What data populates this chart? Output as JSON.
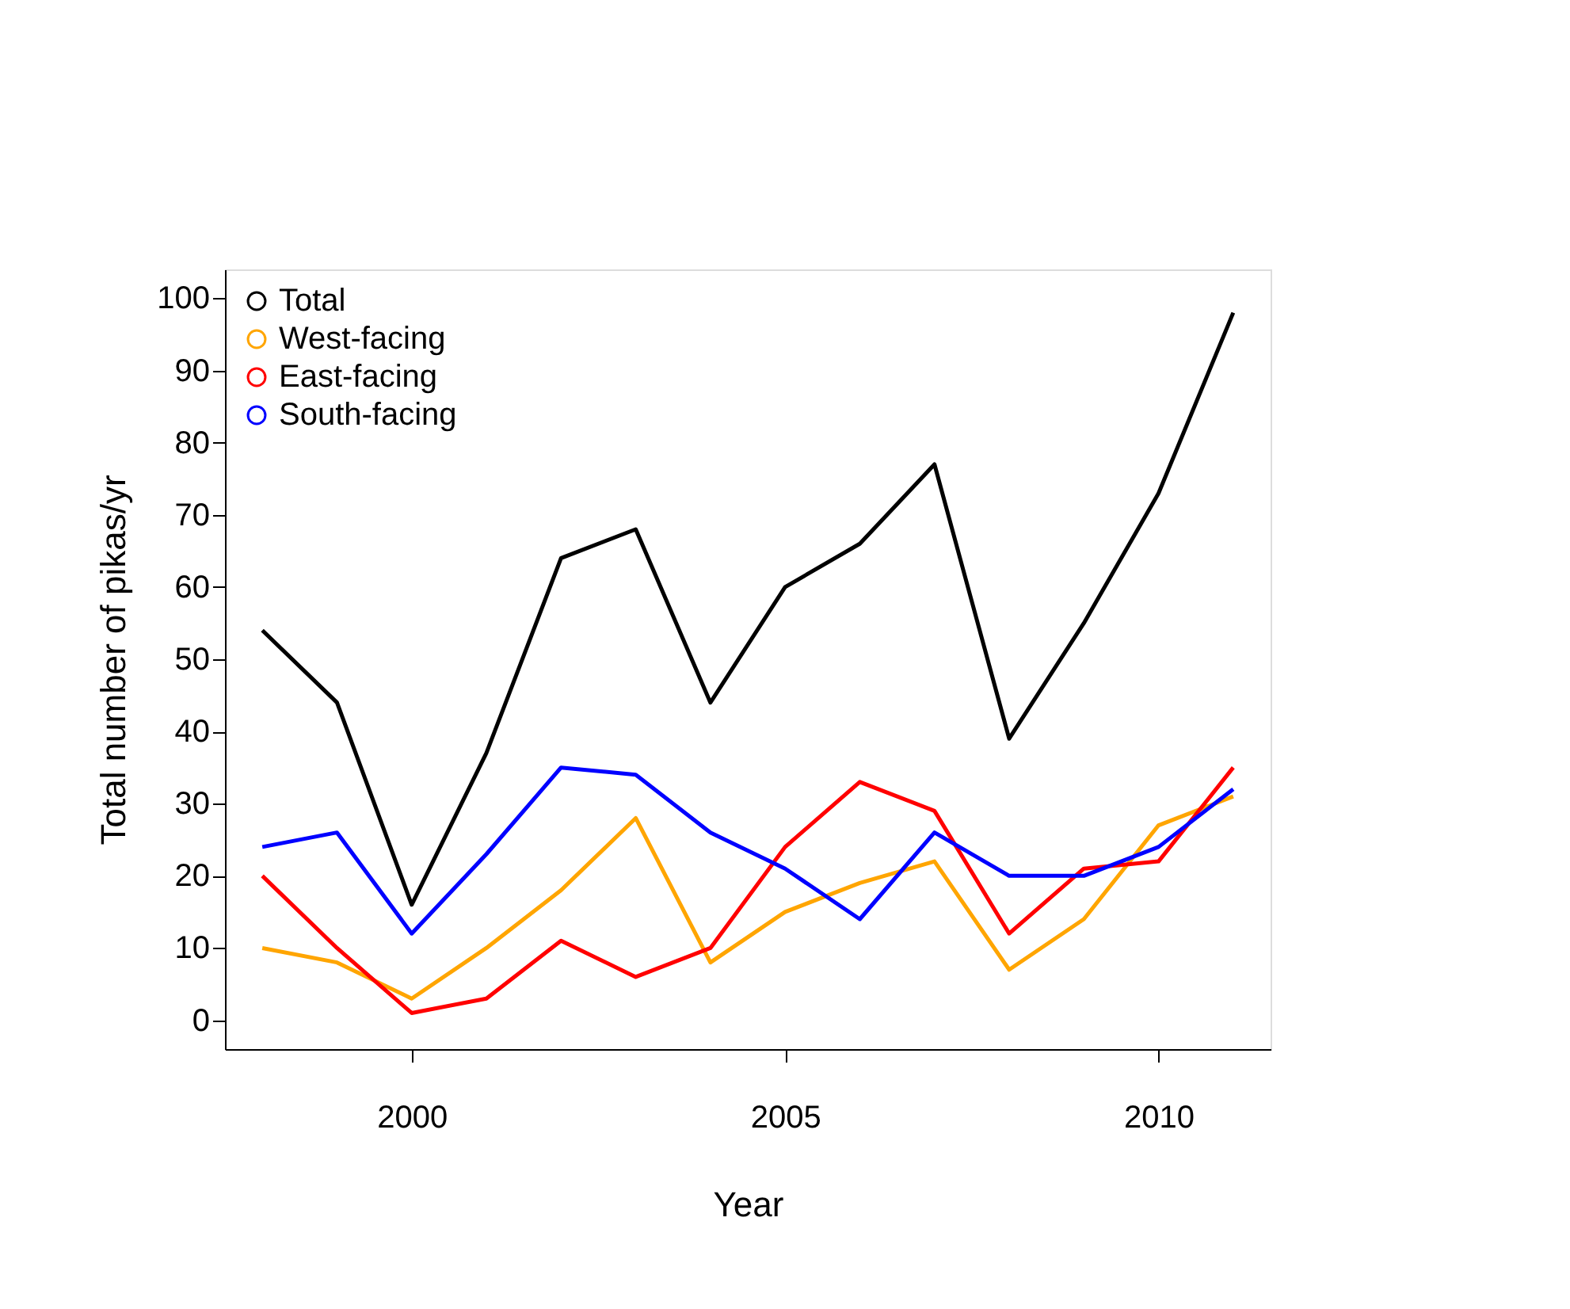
{
  "chart_data": {
    "type": "line",
    "xlabel": "Year",
    "ylabel": "Total number of pikas/yr",
    "x": [
      1998,
      1999,
      2000,
      2001,
      2002,
      2003,
      2004,
      2005,
      2006,
      2007,
      2008,
      2009,
      2010,
      2011
    ],
    "series": [
      {
        "name": "Total",
        "color": "#000000",
        "values": [
          54,
          44,
          16,
          37,
          64,
          68,
          44,
          60,
          66,
          77,
          39,
          55,
          73,
          98
        ]
      },
      {
        "name": "West-facing",
        "color": "#ffa500",
        "values": [
          10,
          8,
          3,
          10,
          18,
          28,
          8,
          15,
          19,
          22,
          7,
          14,
          27,
          31
        ]
      },
      {
        "name": "East-facing",
        "color": "#ff0000",
        "values": [
          20,
          10,
          1,
          3,
          11,
          6,
          10,
          24,
          33,
          29,
          12,
          21,
          22,
          35
        ]
      },
      {
        "name": "South-facing",
        "color": "#0000ff",
        "values": [
          24,
          26,
          12,
          23,
          35,
          34,
          26,
          21,
          14,
          26,
          20,
          20,
          24,
          32
        ]
      }
    ],
    "xlim": [
      1997.5,
      2011.5
    ],
    "xticks": [
      2000,
      2005,
      2010
    ],
    "ylim": [
      -4,
      104
    ],
    "yticks": [
      0,
      10,
      20,
      30,
      40,
      50,
      60,
      70,
      80,
      90,
      100
    ],
    "grid": false,
    "legend": "top left",
    "line_style": "solid"
  }
}
